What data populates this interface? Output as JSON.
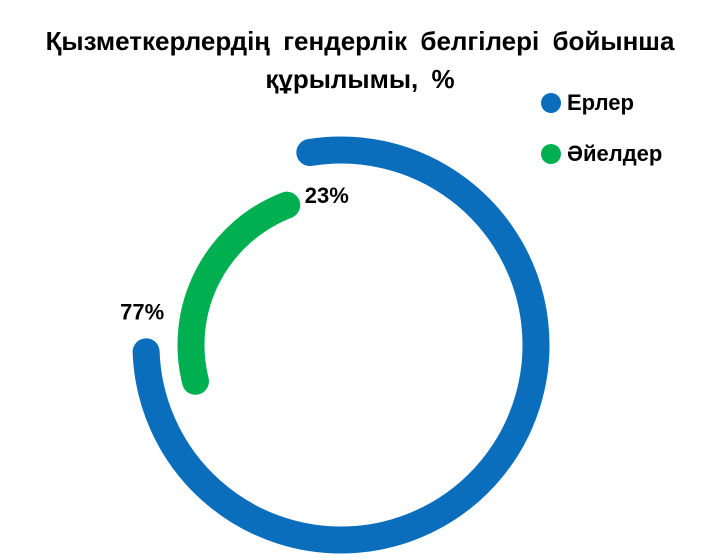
{
  "chart_data": {
    "type": "radial-bar",
    "title": "Қызметкерлердің гендерлік белгілері бойынша құрылымы, %",
    "series": [
      {
        "name": "Ерлер",
        "color": "#0a6ebd",
        "values": [
          77
        ],
        "value_labels": [
          "77%"
        ]
      },
      {
        "name": "Әйелдер",
        "color": "#00b050",
        "values": [
          23
        ],
        "value_labels": [
          "23%"
        ]
      }
    ],
    "legend": "top-right"
  }
}
